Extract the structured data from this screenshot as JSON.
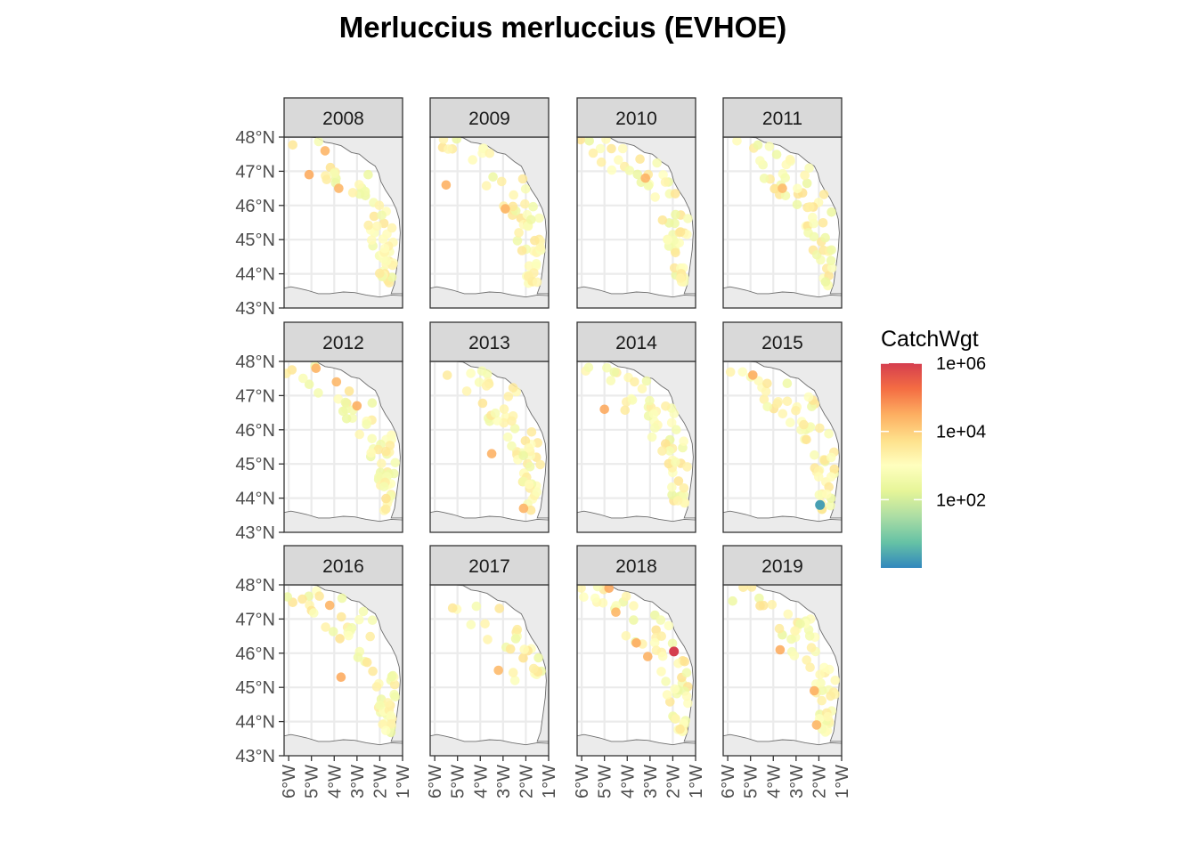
{
  "title": "Merluccius merluccius (EVHOE)",
  "panels": [
    {
      "label": "2008",
      "seed": 11,
      "hot": [
        [
          -5.1,
          46.9
        ],
        [
          -3.8,
          46.5
        ],
        [
          -4.4,
          47.6
        ]
      ]
    },
    {
      "label": "2009",
      "seed": 23,
      "hot": [
        [
          -5.5,
          46.6
        ],
        [
          -2.9,
          45.9
        ]
      ]
    },
    {
      "label": "2010",
      "seed": 37,
      "hot": [
        [
          -3.2,
          46.8
        ]
      ]
    },
    {
      "label": "2011",
      "seed": 41,
      "hot": [
        [
          -3.6,
          46.5
        ]
      ]
    },
    {
      "label": "2012",
      "seed": 53,
      "hot": [
        [
          -4.8,
          47.8
        ],
        [
          -3.9,
          47.4
        ],
        [
          -3.0,
          46.7
        ]
      ]
    },
    {
      "label": "2013",
      "seed": 61,
      "hot": [
        [
          -3.5,
          45.3
        ],
        [
          -2.1,
          43.7
        ]
      ]
    },
    {
      "label": "2014",
      "seed": 71,
      "hot": [
        [
          -5.0,
          46.6
        ]
      ]
    },
    {
      "label": "2015",
      "seed": 83,
      "hot": [
        [
          -4.9,
          47.6
        ]
      ]
    },
    {
      "label": "2016",
      "seed": 97,
      "hot": [
        [
          -3.7,
          45.3
        ],
        [
          -4.2,
          47.4
        ]
      ]
    },
    {
      "label": "2017",
      "seed": 101,
      "hot": [
        [
          -3.2,
          45.5
        ]
      ]
    },
    {
      "label": "2018",
      "seed": 113,
      "hot": [
        [
          -4.8,
          47.9
        ],
        [
          -3.1,
          45.9
        ],
        [
          -3.6,
          46.3
        ],
        [
          -4.5,
          47.2
        ]
      ]
    },
    {
      "label": "2019",
      "seed": 127,
      "hot": [
        [
          -3.7,
          46.1
        ],
        [
          -2.2,
          44.9
        ],
        [
          -2.1,
          43.9
        ]
      ]
    }
  ],
  "chart_data": {
    "type": "scatter",
    "title": "Merluccius merluccius (EVHOE)",
    "xlim": [
      -6.2,
      -1.0
    ],
    "ylim": [
      43.0,
      48.0
    ],
    "x_ticks": [
      -6,
      -5,
      -4,
      -3,
      -2,
      -1
    ],
    "x_tick_labels": [
      "6°W",
      "5°W",
      "4°W",
      "3°W",
      "2°W",
      "1°W"
    ],
    "y_ticks": [
      43,
      44,
      45,
      46,
      47,
      48
    ],
    "y_tick_labels": [
      "43°N",
      "44°N",
      "45°N",
      "46°N",
      "47°N",
      "48°N"
    ],
    "facets": [
      "2008",
      "2009",
      "2010",
      "2011",
      "2012",
      "2013",
      "2014",
      "2015",
      "2016",
      "2017",
      "2018",
      "2019"
    ],
    "special_points": [
      {
        "facet": "2015",
        "lon": -1.95,
        "lat": 43.8,
        "CatchWgt": 2
      },
      {
        "facet": "2018",
        "lon": -1.95,
        "lat": 46.05,
        "CatchWgt": 1000000
      }
    ],
    "legend": {
      "title": "CatchWgt",
      "scale": "log10",
      "range": [
        1,
        1000000
      ],
      "breaks": [
        100,
        10000,
        1000000
      ],
      "break_labels": [
        "1e+02",
        "1e+04",
        "1e+06"
      ],
      "position": "right",
      "palette": [
        "#3288BD",
        "#66C2A5",
        "#ABDDA4",
        "#E6F598",
        "#FFFFBF",
        "#FEE08B",
        "#FDAE61",
        "#F46D43",
        "#D53E4F"
      ]
    },
    "grid": true,
    "colors": {
      "land": "#EBEBEB",
      "sea": "#FFFFFF",
      "strip": "#D9D9D9",
      "grid": "#EBEBEB"
    }
  }
}
